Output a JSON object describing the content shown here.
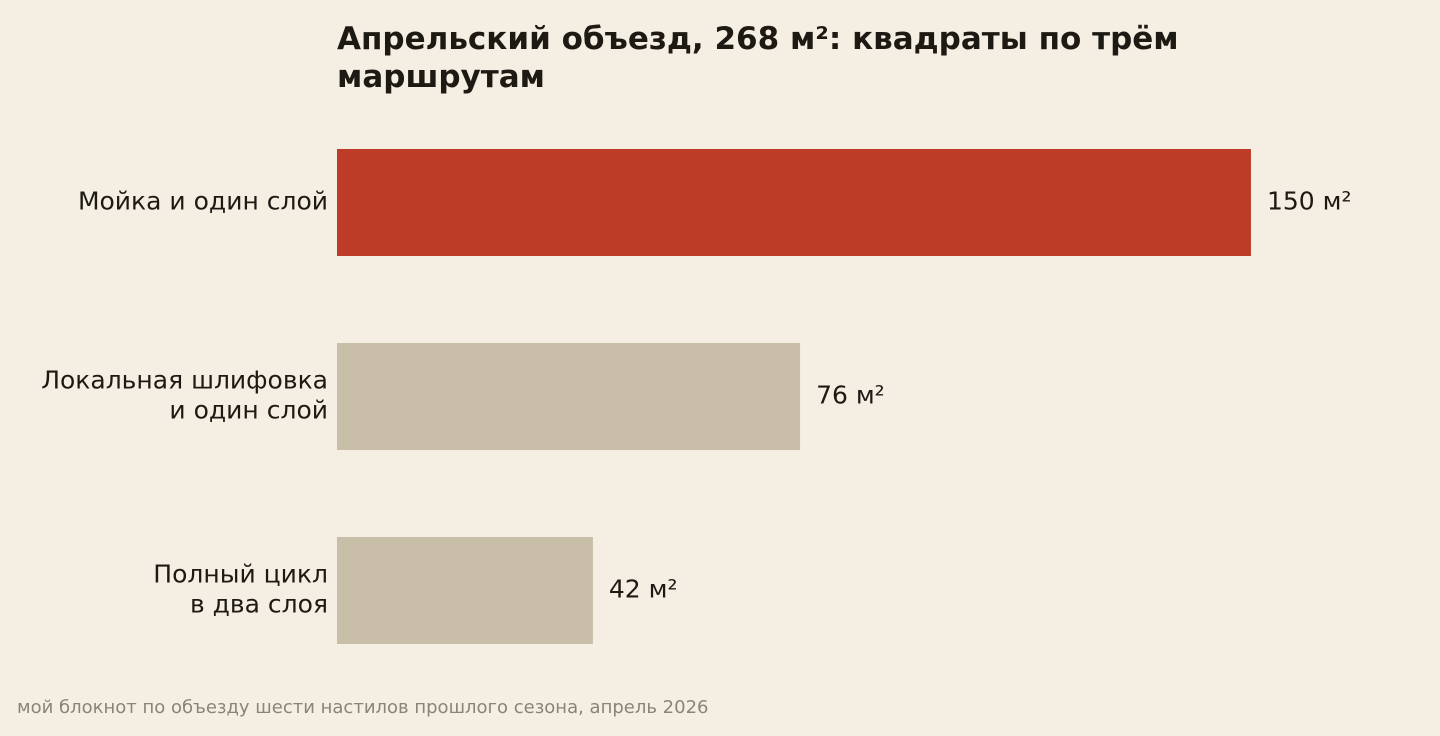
{
  "chart_data": {
    "type": "bar",
    "orientation": "horizontal",
    "title": "Апрельский объезд, 268 м²: квадраты по трём маршрутам",
    "categories": [
      [
        "Мойка и один слой"
      ],
      [
        "Локальная шлифовка",
        "и один слой"
      ],
      [
        "Полный цикл",
        "в два слоя"
      ]
    ],
    "values": [
      150,
      76,
      42
    ],
    "value_labels": [
      "150 м²",
      "76 м²",
      "42 м²"
    ],
    "unit": "м²",
    "colors": [
      "#bc3c27",
      "#c9bea7",
      "#c9bea7"
    ],
    "xlabel": "",
    "ylabel": "",
    "grid": false,
    "axes_visible": false
  },
  "footer": {
    "source_note": "мой блокнот по объезду шести настилов прошлого сезона, апрель 2026"
  },
  "colors": {
    "background": "#f5efe3",
    "text": "#1d1a14",
    "muted_text": "#8a8478",
    "highlight_bar": "#bc3c27",
    "other_bars": "#c9bea7"
  }
}
